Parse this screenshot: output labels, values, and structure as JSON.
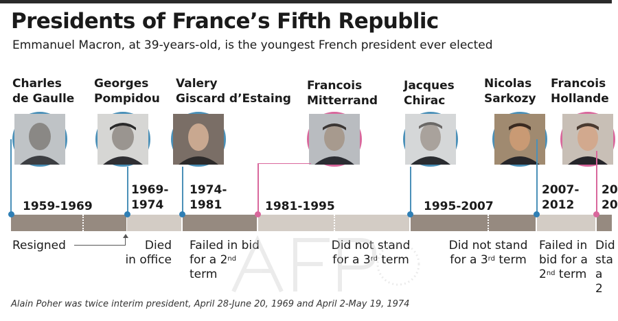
{
  "header": {
    "title": "Presidents of France’s Fifth Republic",
    "subtitle": "Emmanuel Macron, at 39-years-old, is the youngest French president ever elected"
  },
  "colors": {
    "blue_line": "#4a90b8",
    "pink_line": "#d9679c",
    "bar_dark": "#968a80",
    "bar_light": "#d3ccc5"
  },
  "presidents": [
    {
      "name": "Charles\nde Gaulle",
      "period": "1959-1969",
      "fate": "Resigned"
    },
    {
      "name": "Georges\nPompidou",
      "period": "1969-\n1974",
      "fate": "Died\nin office"
    },
    {
      "name": "Valery\nGiscard d’Estaing",
      "period": "1974-\n1981",
      "fate_pre": "Failed in bid\nfor a 2",
      "fate_sup": "nd",
      "fate_post": "\nterm"
    },
    {
      "name": "Francois\nMitterrand",
      "period": "1981-1995",
      "fate_pre": "Did not stand\nfor a 3",
      "fate_sup": "rd",
      "fate_post": " term"
    },
    {
      "name": "Jacques\nChirac",
      "period": "1995-2007",
      "fate_pre": "Did not stand\nfor a 3",
      "fate_sup": "rd",
      "fate_post": " term"
    },
    {
      "name": "Nicolas\nSarkozy",
      "period": "2007-\n2012",
      "fate_pre": "Failed in\nbid for a\n2",
      "fate_sup": "nd",
      "fate_post": " term"
    },
    {
      "name": "Francois\nHollande",
      "period": "20\n20",
      "fate": "Did\nsta\na 2"
    }
  ],
  "footnote": "Alain Poher was twice interim president, April 28-June 20, 1969 and April 2-May 19, 1974"
}
